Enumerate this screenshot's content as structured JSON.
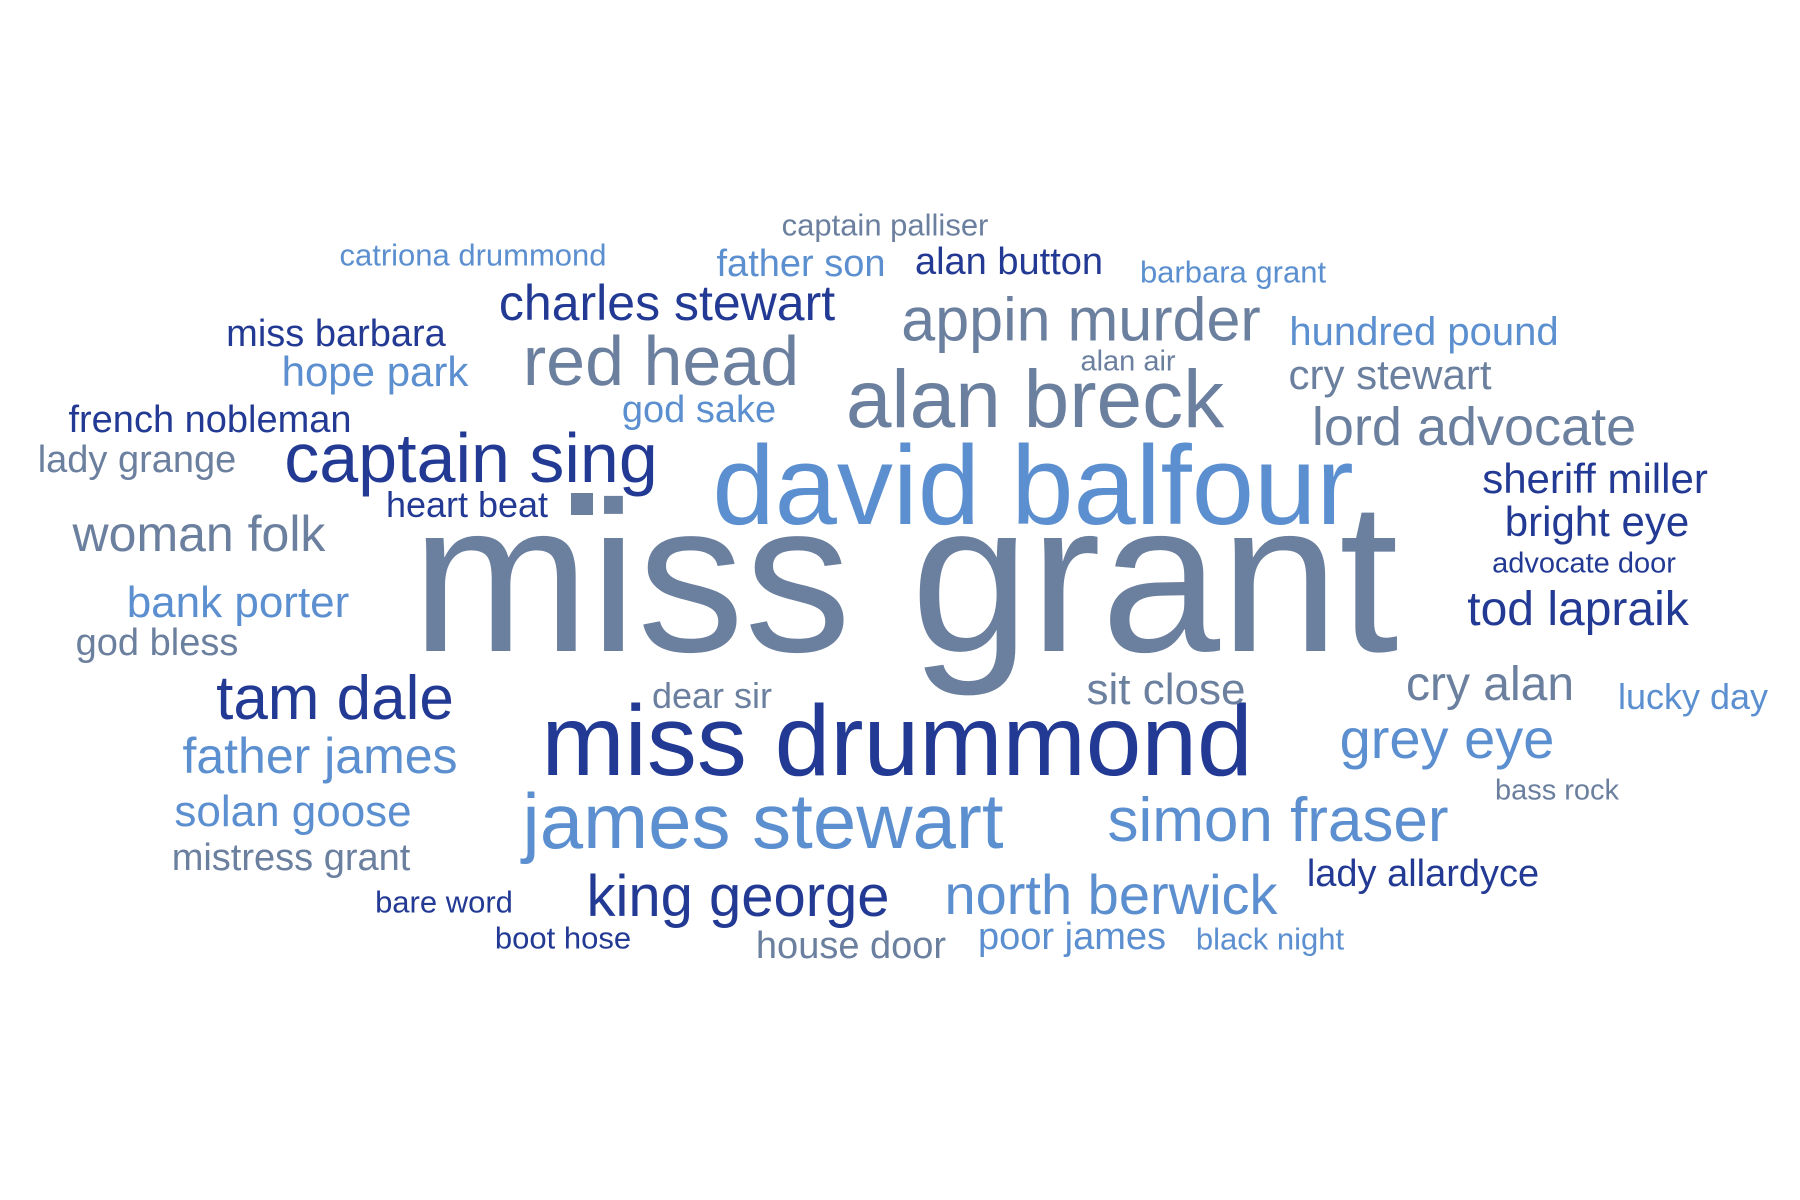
{
  "palette": {
    "slate": "#6B7F9E",
    "navy": "#233A94",
    "sky": "#5B8FCF"
  },
  "words": [
    {
      "text": "miss grant",
      "color": "slate"
    },
    {
      "text": "david balfour",
      "color": "sky"
    },
    {
      "text": "miss drummond",
      "color": "navy"
    },
    {
      "text": "alan breck",
      "color": "slate"
    },
    {
      "text": "james stewart",
      "color": "sky"
    },
    {
      "text": "captain sing",
      "color": "navy"
    },
    {
      "text": "red head",
      "color": "slate"
    },
    {
      "text": "appin murder",
      "color": "slate"
    },
    {
      "text": "simon fraser",
      "color": "sky"
    },
    {
      "text": "tam dale",
      "color": "navy"
    },
    {
      "text": "king george",
      "color": "navy"
    },
    {
      "text": "north berwick",
      "color": "sky"
    },
    {
      "text": "grey eye",
      "color": "sky"
    },
    {
      "text": "charles stewart",
      "color": "navy"
    },
    {
      "text": "lord advocate",
      "color": "slate"
    },
    {
      "text": "woman folk",
      "color": "slate"
    },
    {
      "text": "father james",
      "color": "sky"
    },
    {
      "text": "tod lapraik",
      "color": "navy"
    },
    {
      "text": "cry alan",
      "color": "slate"
    },
    {
      "text": "solan goose",
      "color": "sky"
    },
    {
      "text": "bank porter",
      "color": "sky"
    },
    {
      "text": "sit close",
      "color": "slate"
    },
    {
      "text": "sheriff miller",
      "color": "navy"
    },
    {
      "text": "bright eye",
      "color": "navy"
    },
    {
      "text": "cry stewart",
      "color": "slate"
    },
    {
      "text": "hope park",
      "color": "sky"
    },
    {
      "text": "hundred pound",
      "color": "sky"
    },
    {
      "text": "father son",
      "color": "sky"
    },
    {
      "text": "alan button",
      "color": "navy"
    },
    {
      "text": "miss barbara",
      "color": "navy"
    },
    {
      "text": "french nobleman",
      "color": "navy"
    },
    {
      "text": "god sake",
      "color": "sky"
    },
    {
      "text": "lady grange",
      "color": "slate"
    },
    {
      "text": "mistress grant",
      "color": "slate"
    },
    {
      "text": "god bless",
      "color": "slate"
    },
    {
      "text": "house door",
      "color": "slate"
    },
    {
      "text": "poor james",
      "color": "sky"
    },
    {
      "text": "lady allardyce",
      "color": "navy"
    },
    {
      "text": "heart beat",
      "color": "navy"
    },
    {
      "text": "dear sir",
      "color": "slate"
    },
    {
      "text": "lucky day",
      "color": "sky"
    },
    {
      "text": "catriona drummond",
      "color": "sky"
    },
    {
      "text": "captain palliser",
      "color": "slate"
    },
    {
      "text": "barbara grant",
      "color": "sky"
    },
    {
      "text": "alan air",
      "color": "slate"
    },
    {
      "text": "advocate door",
      "color": "navy"
    },
    {
      "text": "bass rock",
      "color": "slate"
    },
    {
      "text": "bare word",
      "color": "navy"
    },
    {
      "text": "boot hose",
      "color": "navy"
    },
    {
      "text": "black night",
      "color": "sky"
    }
  ]
}
